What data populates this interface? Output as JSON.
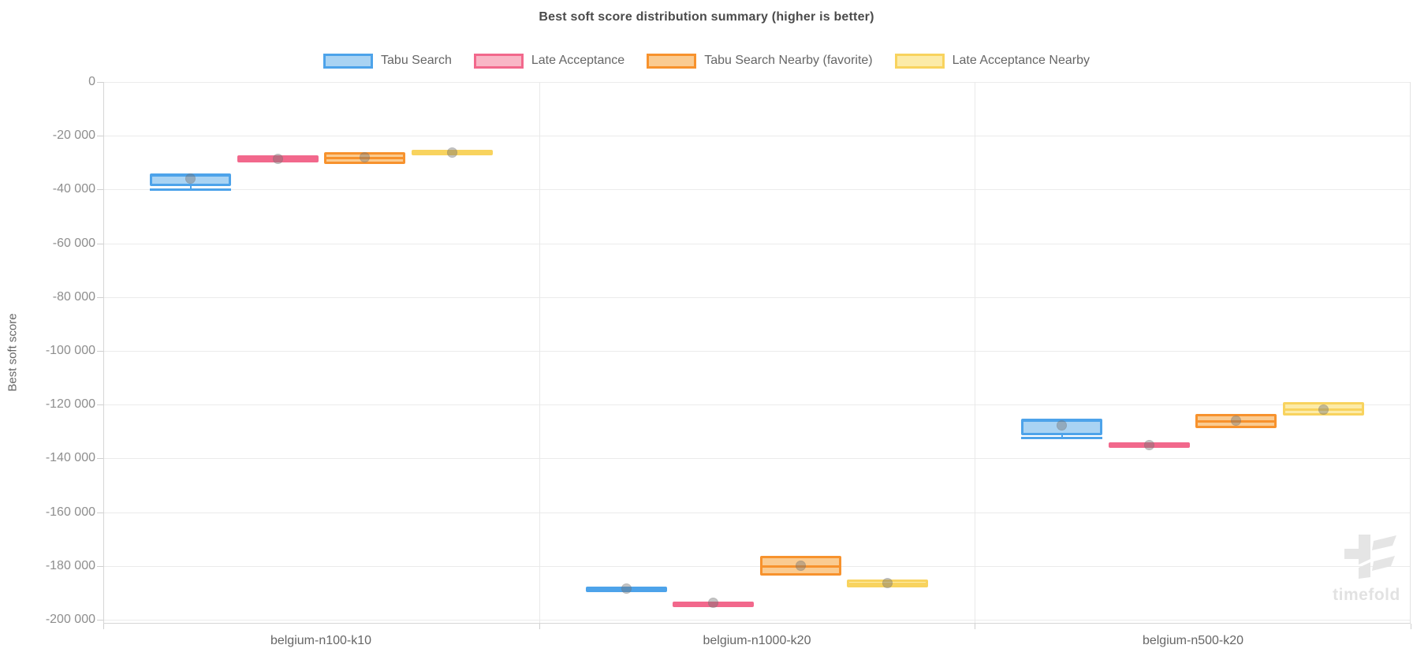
{
  "branding": {
    "logo_text": "timefold"
  },
  "chart_data": {
    "type": "boxplot",
    "title": "Best soft score distribution summary (higher is better)",
    "ylabel": "Best soft score",
    "legend_position": "top",
    "grid": true,
    "categories": [
      "belgium-n100-k10",
      "belgium-n1000-k20",
      "belgium-n500-k20"
    ],
    "series": [
      {
        "name": "Tabu Search",
        "color": "#4da3ea",
        "fill": "#a9d3f3"
      },
      {
        "name": "Late Acceptance",
        "color": "#f2688c",
        "fill": "#f9b6c6"
      },
      {
        "name": "Tabu Search Nearby (favorite)",
        "color": "#f7922d",
        "fill": "#facb91"
      },
      {
        "name": "Late Acceptance Nearby",
        "color": "#f8d35e",
        "fill": "#fceba8"
      }
    ],
    "axis": {
      "y": {
        "min": -200000,
        "max": 0,
        "tick_values": [
          0,
          -20000,
          -40000,
          -60000,
          -80000,
          -100000,
          -120000,
          -140000,
          -160000,
          -180000,
          -200000
        ],
        "tick_labels": [
          "0",
          "-20 000",
          "-40 000",
          "-60 000",
          "-80 000",
          "-100 000",
          "-120 000",
          "-140 000",
          "-160 000",
          "-180 000",
          "-200 000"
        ]
      }
    },
    "stats": [
      [
        {
          "min": -39900,
          "q1": -38700,
          "median": -34700,
          "q3": -33900,
          "max": -33900,
          "mean": -36000
        },
        {
          "min": -29700,
          "q1": -29700,
          "median": -28400,
          "q3": -27200,
          "max": -27200,
          "mean": -28500
        },
        {
          "min": -30300,
          "q1": -30300,
          "median": -28100,
          "q3": -26000,
          "max": -26000,
          "mean": -28100
        },
        {
          "min": -26900,
          "q1": -26900,
          "median": -26100,
          "q3": -25300,
          "max": -25300,
          "mean": -26100
        }
      ],
      [
        {
          "min": -189500,
          "q1": -189500,
          "median": -188400,
          "q3": -187600,
          "max": -187600,
          "mean": -188400
        },
        {
          "min": -194300,
          "q1": -194300,
          "median": -193800,
          "q3": -193300,
          "max": -193300,
          "mean": -193800
        },
        {
          "min": -183600,
          "q1": -183600,
          "median": -180000,
          "q3": -176300,
          "max": -176300,
          "mean": -180000
        },
        {
          "min": -187900,
          "q1": -187900,
          "median": -186500,
          "q3": -185100,
          "max": -185100,
          "mean": -186500
        }
      ],
      [
        {
          "min": -132200,
          "q1": -131400,
          "median": -125900,
          "q3": -125100,
          "max": -125100,
          "mean": -127700
        },
        {
          "min": -135800,
          "q1": -135800,
          "median": -134900,
          "q3": -133900,
          "max": -133900,
          "mean": -134900
        },
        {
          "min": -128700,
          "q1": -128700,
          "median": -126000,
          "q3": -123500,
          "max": -123500,
          "mean": -126000
        },
        {
          "min": -124200,
          "q1": -124200,
          "median": -121700,
          "q3": -119200,
          "max": -119200,
          "mean": -121800
        }
      ]
    ]
  }
}
